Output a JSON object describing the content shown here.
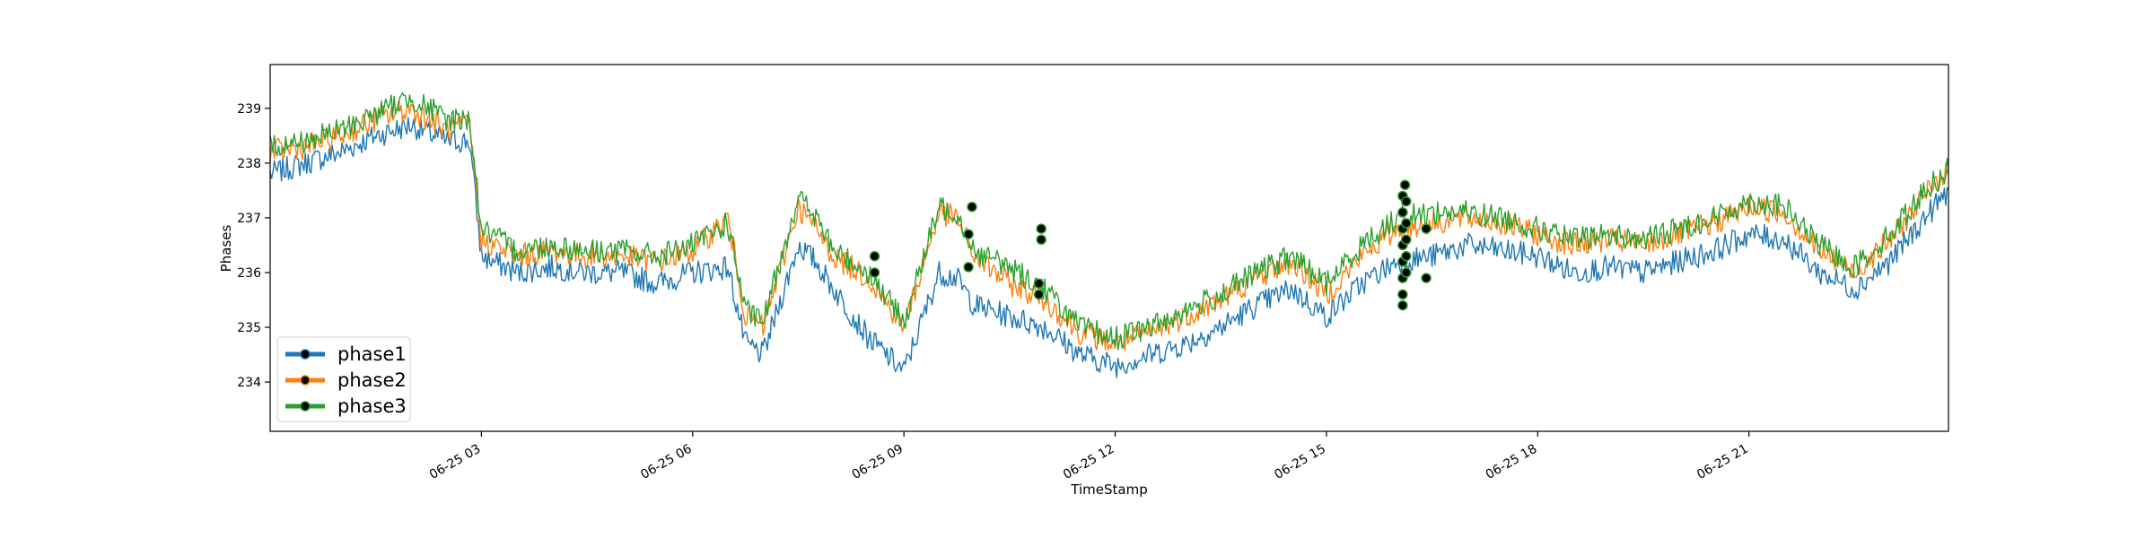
{
  "chart_data": {
    "type": "line",
    "xlabel": "TimeStamp",
    "ylabel": "Phases",
    "xlim": [
      "2025-06-25 00:00",
      "2025-06-25 23:50"
    ],
    "ylim": [
      233.1,
      239.8
    ],
    "yticks": [
      234,
      235,
      236,
      237,
      238,
      239
    ],
    "xticks": [
      {
        "t": "2025-06-25 03:00",
        "label": "06-25 03"
      },
      {
        "t": "2025-06-25 06:00",
        "label": "06-25 06"
      },
      {
        "t": "2025-06-25 09:00",
        "label": "06-25 09"
      },
      {
        "t": "2025-06-25 12:00",
        "label": "06-25 12"
      },
      {
        "t": "2025-06-25 15:00",
        "label": "06-25 15"
      },
      {
        "t": "2025-06-25 18:00",
        "label": "06-25 18"
      },
      {
        "t": "2025-06-25 21:00",
        "label": "06-25 21"
      }
    ],
    "legend_position": "lower-left",
    "grid": false,
    "x": [
      "00:00",
      "00:30",
      "01:00",
      "01:30",
      "02:00",
      "02:30",
      "02:50",
      "03:00",
      "03:30",
      "04:00",
      "04:30",
      "05:00",
      "05:30",
      "06:00",
      "06:30",
      "06:45",
      "07:00",
      "07:30",
      "07:45",
      "08:00",
      "08:30",
      "09:00",
      "09:30",
      "09:45",
      "10:00",
      "10:30",
      "11:00",
      "11:30",
      "12:00",
      "12:30",
      "13:00",
      "13:30",
      "14:00",
      "14:30",
      "15:00",
      "15:30",
      "16:00",
      "16:30",
      "17:00",
      "17:30",
      "18:00",
      "18:30",
      "19:00",
      "19:30",
      "20:00",
      "20:30",
      "21:00",
      "21:30",
      "22:00",
      "22:30",
      "23:00",
      "23:30",
      "23:50"
    ],
    "series": [
      {
        "name": "phase1",
        "color": "#1f77b4",
        "values": [
          237.8,
          238.0,
          238.2,
          238.5,
          238.7,
          238.4,
          238.4,
          236.3,
          236.0,
          236.1,
          236.0,
          236.0,
          235.8,
          236.0,
          236.1,
          234.7,
          234.5,
          236.5,
          236.2,
          235.7,
          234.8,
          234.2,
          236.0,
          235.9,
          235.4,
          235.2,
          235.0,
          234.5,
          234.3,
          234.5,
          234.7,
          235.0,
          235.4,
          235.7,
          235.2,
          235.8,
          236.2,
          236.3,
          236.5,
          236.4,
          236.3,
          236.0,
          236.1,
          236.0,
          236.2,
          236.4,
          236.7,
          236.6,
          236.0,
          235.7,
          236.2,
          237.0,
          237.5
        ]
      },
      {
        "name": "phase2",
        "color": "#ff7f0e",
        "values": [
          238.2,
          238.3,
          238.5,
          238.8,
          239.0,
          238.6,
          238.7,
          236.6,
          236.3,
          236.4,
          236.3,
          236.3,
          236.2,
          236.4,
          237.0,
          235.2,
          235.0,
          237.2,
          236.8,
          236.3,
          235.9,
          235.0,
          237.1,
          237.0,
          236.3,
          235.8,
          235.5,
          234.9,
          234.7,
          234.9,
          235.2,
          235.5,
          235.9,
          236.2,
          235.6,
          236.3,
          236.8,
          236.9,
          237.0,
          236.9,
          236.7,
          236.5,
          236.6,
          236.5,
          236.7,
          236.9,
          237.2,
          237.1,
          236.4,
          236.0,
          236.6,
          237.4,
          237.9
        ]
      },
      {
        "name": "phase3",
        "color": "#2ca02c",
        "values": [
          238.3,
          238.4,
          238.6,
          238.9,
          239.2,
          238.8,
          238.8,
          236.8,
          236.4,
          236.5,
          236.4,
          236.4,
          236.3,
          236.5,
          236.9,
          235.3,
          235.1,
          237.4,
          237.0,
          236.4,
          236.0,
          235.1,
          237.2,
          237.1,
          236.4,
          236.1,
          235.7,
          235.0,
          234.8,
          235.0,
          235.3,
          235.6,
          236.0,
          236.3,
          235.8,
          236.5,
          237.0,
          237.1,
          237.1,
          237.0,
          236.8,
          236.6,
          236.7,
          236.6,
          236.8,
          237.0,
          237.3,
          237.2,
          236.5,
          236.1,
          236.7,
          237.5,
          237.9
        ]
      }
    ],
    "markers": [
      {
        "x": "08:35",
        "y": 236.0
      },
      {
        "x": "08:35",
        "y": 236.3
      },
      {
        "x": "09:55",
        "y": 236.1
      },
      {
        "x": "09:55",
        "y": 236.7
      },
      {
        "x": "09:58",
        "y": 237.2
      },
      {
        "x": "10:55",
        "y": 235.6
      },
      {
        "x": "10:55",
        "y": 235.8
      },
      {
        "x": "10:57",
        "y": 236.6
      },
      {
        "x": "10:57",
        "y": 236.8
      },
      {
        "x": "16:05",
        "y": 235.4
      },
      {
        "x": "16:05",
        "y": 235.6
      },
      {
        "x": "16:05",
        "y": 235.9
      },
      {
        "x": "16:05",
        "y": 236.2
      },
      {
        "x": "16:05",
        "y": 236.5
      },
      {
        "x": "16:05",
        "y": 236.8
      },
      {
        "x": "16:05",
        "y": 237.1
      },
      {
        "x": "16:05",
        "y": 237.4
      },
      {
        "x": "16:07",
        "y": 237.6
      },
      {
        "x": "16:08",
        "y": 236.0
      },
      {
        "x": "16:08",
        "y": 236.3
      },
      {
        "x": "16:08",
        "y": 236.6
      },
      {
        "x": "16:08",
        "y": 236.9
      },
      {
        "x": "16:08",
        "y": 237.3
      },
      {
        "x": "16:25",
        "y": 235.9
      },
      {
        "x": "16:25",
        "y": 236.8
      }
    ]
  }
}
